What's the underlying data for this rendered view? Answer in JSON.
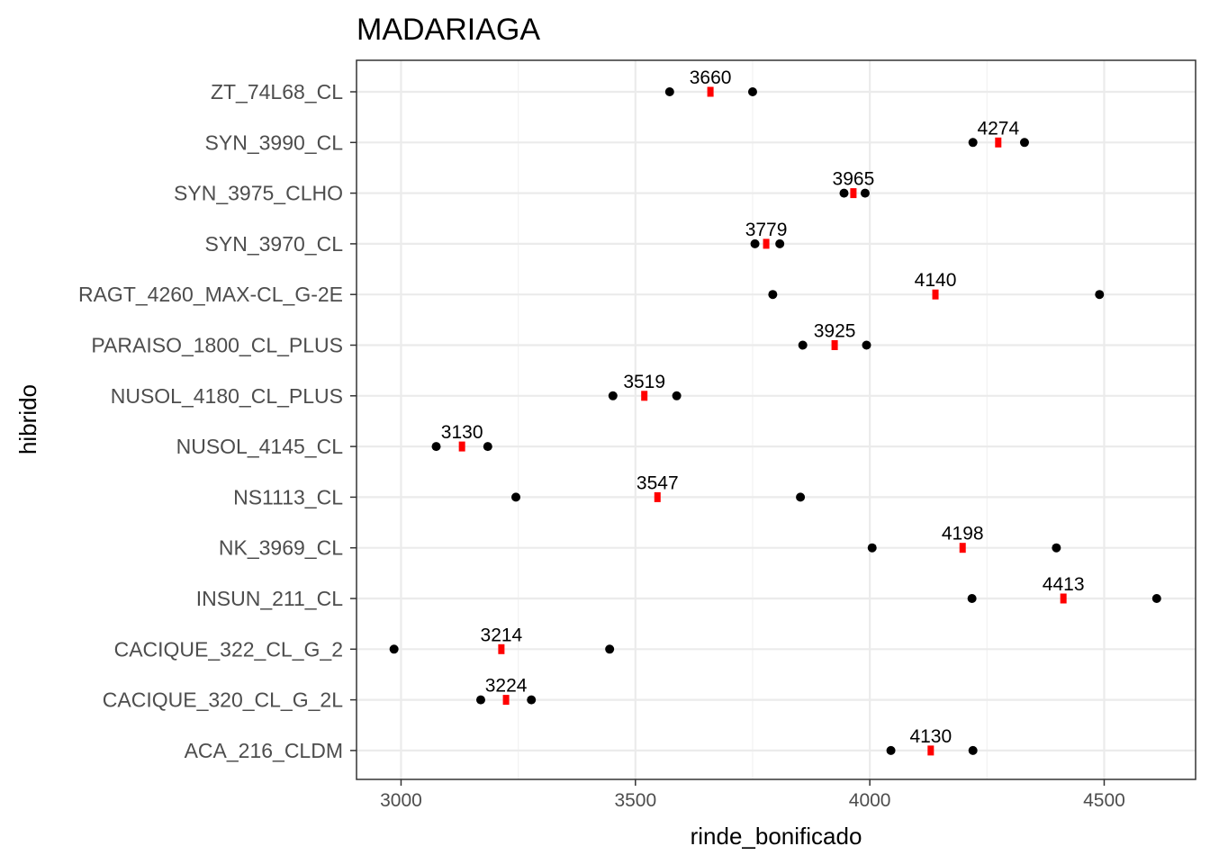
{
  "chart_data": {
    "type": "scatter",
    "title": "MADARIAGA",
    "xlabel": "rinde_bonificado",
    "ylabel": "hibrido",
    "xlim": [
      2905,
      4695
    ],
    "x_ticks": [
      3000,
      3500,
      4000,
      4500
    ],
    "grid": true,
    "categories": [
      "ZT_74L68_CL",
      "SYN_3990_CL",
      "SYN_3975_CLHO",
      "SYN_3970_CL",
      "RAGT_4260_MAX-CL_G-2E",
      "PARAISO_1800_CL_PLUS",
      "NUSOL_4180_CL_PLUS",
      "NUSOL_4145_CL",
      "NS1113_CL",
      "NK_3969_CL",
      "INSUN_211_CL",
      "CACIQUE_322_CL_G_2",
      "CACIQUE_320_CL_G_2L",
      "ACA_216_CLDM"
    ],
    "series": [
      {
        "values": [
          3573,
          4220,
          3945,
          3755,
          3793,
          3857,
          3452,
          3075,
          3245,
          4005,
          4218,
          2985,
          3170,
          4045
        ],
        "color": "#000000"
      },
      {
        "values": [
          3750,
          4330,
          3990,
          3808,
          4490,
          3993,
          3588,
          3185,
          3852,
          4398,
          4612,
          3445,
          3278,
          4220
        ],
        "color": "#000000"
      },
      {
        "values": [
          3660,
          4274,
          3965,
          3779,
          4140,
          3925,
          3519,
          3130,
          3547,
          4198,
          4413,
          3214,
          3224,
          4130
        ],
        "color": "#ff0000"
      }
    ],
    "data_labels": [
      "3660",
      "4274",
      "3965",
      "3779",
      "4140",
      "3925",
      "3519",
      "3130",
      "3547",
      "4198",
      "4413",
      "3214",
      "3224",
      "4130"
    ]
  }
}
